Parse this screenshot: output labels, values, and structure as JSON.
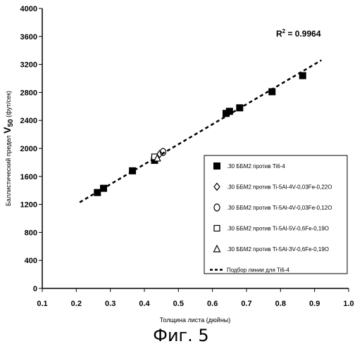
{
  "figure_caption": "Фиг. 5",
  "chart_data": {
    "type": "scatter",
    "title": "",
    "xlabel": "Толщина листа (дюйны)",
    "ylabel_prefix": "Баллистический предел ",
    "ylabel_main": "V",
    "ylabel_sub": "50",
    "ylabel_suffix": " (фут/сек)",
    "xlim": [
      0.1,
      1.0
    ],
    "ylim": [
      0,
      4000
    ],
    "x_ticks": [
      "0.1",
      "0.2",
      "0.3",
      "0.4",
      "0.5",
      "0.6",
      "0.7",
      "0.8",
      "0.9",
      "1.0"
    ],
    "y_ticks": [
      "0",
      "400",
      "800",
      "1200",
      "1600",
      "2000",
      "2400",
      "2800",
      "3200",
      "3600",
      "4000"
    ],
    "annotation": {
      "label": "R",
      "sup": "2",
      "value": " = 0.9964"
    },
    "legend_placement": "bottom-right",
    "series": [
      {
        "name": ".30 ББМ2 против Ti6-4",
        "marker": "filled-square",
        "x": [
          0.262,
          0.28,
          0.365,
          0.43,
          0.64,
          0.65,
          0.68,
          0.775,
          0.865
        ],
        "y": [
          1370,
          1430,
          1680,
          1830,
          2500,
          2530,
          2580,
          2810,
          3040
        ]
      },
      {
        "name": ".30 ББМ2 против Ti-5Al-4V-0,03Fe-0,22O",
        "marker": "diamond",
        "x": [
          0.445
        ],
        "y": [
          1920
        ]
      },
      {
        "name": ".30 ББМ2 против Ti-5Al-4V-0,03Fe-0,12O",
        "marker": "circle",
        "x": [
          0.455
        ],
        "y": [
          1950
        ]
      },
      {
        "name": ".30 ББМ2 против Ti-5Al-5V-0,6Fe-0,19O",
        "marker": "open-square",
        "x": [
          0.43
        ],
        "y": [
          1880
        ]
      },
      {
        "name": ".30 ББМ2 против Ti-5Al-3V-0,6Fe-0,19O",
        "marker": "triangle",
        "x": [
          0.438
        ],
        "y": [
          1860
        ]
      }
    ],
    "fit_line": {
      "name": "Подбор линии для Ti6-4",
      "x": [
        0.21,
        0.92
      ],
      "y": [
        1230,
        3260
      ]
    }
  }
}
